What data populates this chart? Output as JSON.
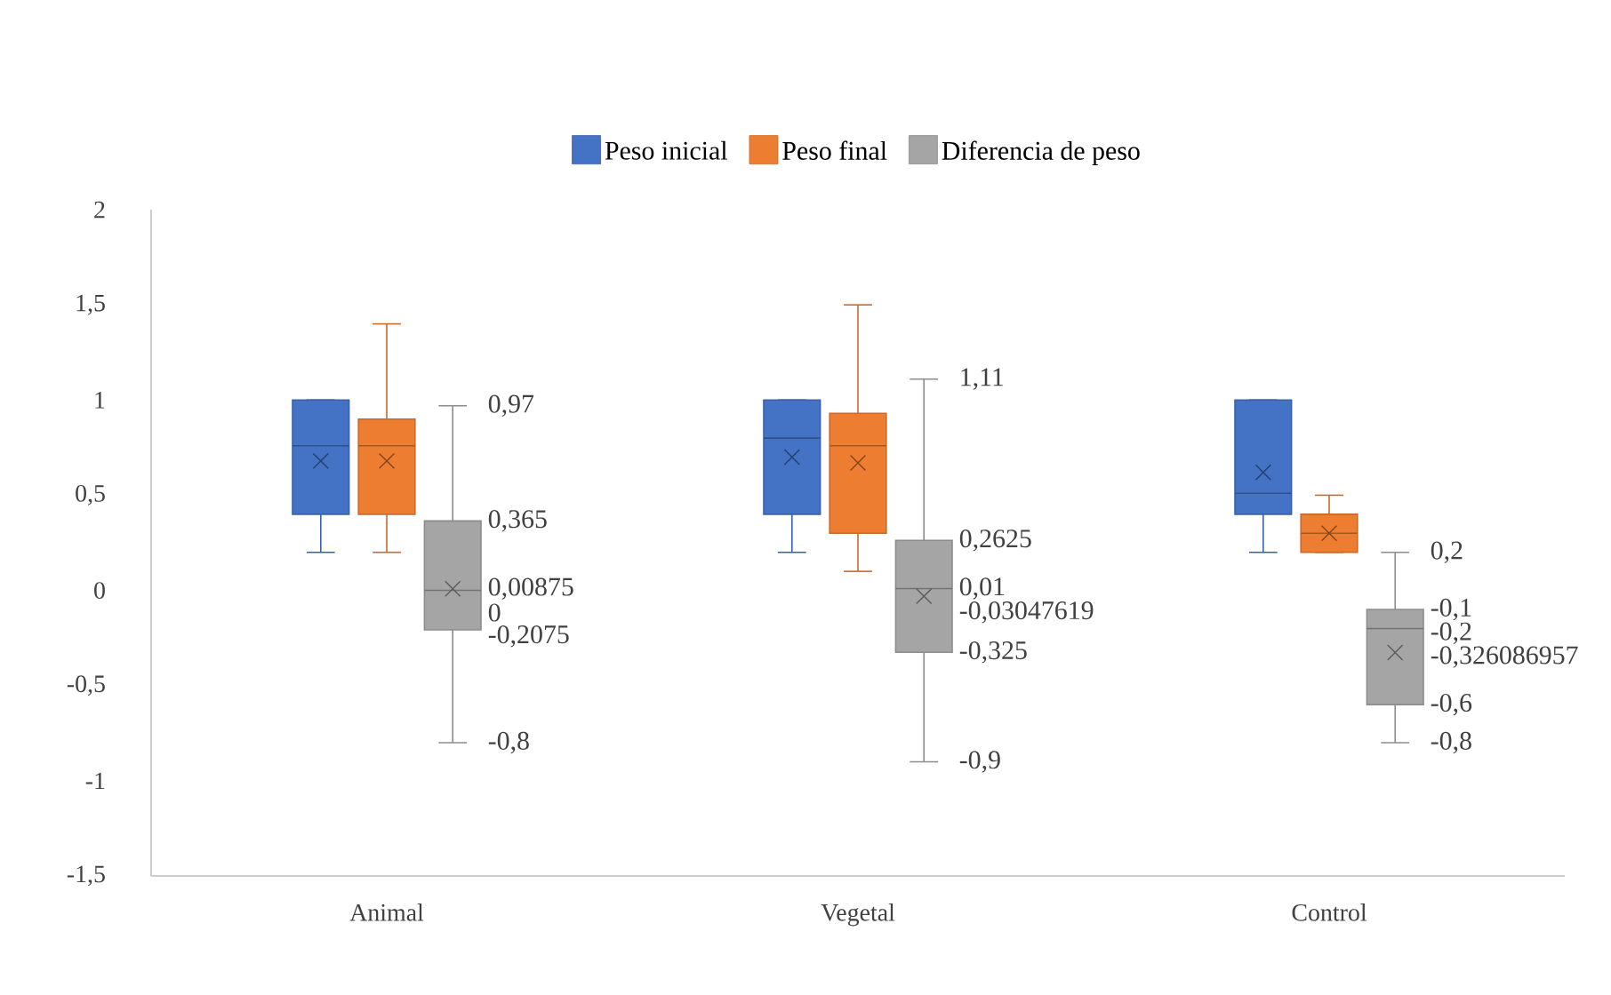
{
  "chart_data": {
    "type": "box",
    "categories": [
      "Animal",
      "Vegetal",
      "Control"
    ],
    "series": [
      {
        "name": "Peso inicial",
        "color": "#4472c4",
        "boxes": [
          {
            "low": 0.2,
            "q1": 0.4,
            "median": 0.76,
            "q3": 1.0,
            "high": 1.0,
            "mean": 0.68
          },
          {
            "low": 0.2,
            "q1": 0.4,
            "median": 0.8,
            "q3": 1.0,
            "high": 1.0,
            "mean": 0.7
          },
          {
            "low": 0.2,
            "q1": 0.4,
            "median": 0.51,
            "q3": 1.0,
            "high": 1.0,
            "mean": 0.62
          }
        ]
      },
      {
        "name": "Peso final",
        "color": "#ed7d31",
        "boxes": [
          {
            "low": 0.2,
            "q1": 0.4,
            "median": 0.76,
            "q3": 0.9,
            "high": 1.4,
            "mean": 0.68
          },
          {
            "low": 0.1,
            "q1": 0.3,
            "median": 0.76,
            "q3": 0.93,
            "high": 1.5,
            "mean": 0.67
          },
          {
            "low": 0.2,
            "q1": 0.2,
            "median": 0.3,
            "q3": 0.4,
            "high": 0.5,
            "mean": 0.3
          }
        ]
      },
      {
        "name": "Diferencia de peso",
        "color": "#a5a5a5",
        "data_labels": true,
        "boxes": [
          {
            "low": -0.8,
            "q1": -0.2075,
            "median": 0,
            "q3": 0.365,
            "high": 0.97,
            "mean": 0.00875
          },
          {
            "low": -0.9,
            "q1": -0.325,
            "median": 0.01,
            "q3": 0.2625,
            "high": 1.11,
            "mean": -0.03047619
          },
          {
            "low": -0.8,
            "q1": -0.6,
            "median": -0.2,
            "q3": -0.1,
            "high": 0.2,
            "mean": -0.326086957
          }
        ]
      }
    ],
    "ylim": [
      -1.5,
      2
    ],
    "yticks": [
      {
        "value": -1.5,
        "label": "-1,5"
      },
      -1,
      {
        "value": -0.5,
        "label": "-0,5"
      },
      0,
      {
        "value": 0.5,
        "label": "0,5"
      },
      1,
      {
        "value": 1.5,
        "label": "1,5"
      },
      2
    ],
    "annotations": [
      "0,97",
      "0,365",
      "0",
      "0,00875",
      "-0,2075",
      "-0,8",
      "1,11",
      "0,2625",
      "0,01",
      "-0,03047619",
      "-0,325",
      "-0,9",
      "0,2",
      "-0,1",
      "-0,2",
      "-0,326086957",
      "-0,6",
      "-0,8"
    ],
    "grid": false,
    "legend": "top",
    "marker": "cross"
  }
}
